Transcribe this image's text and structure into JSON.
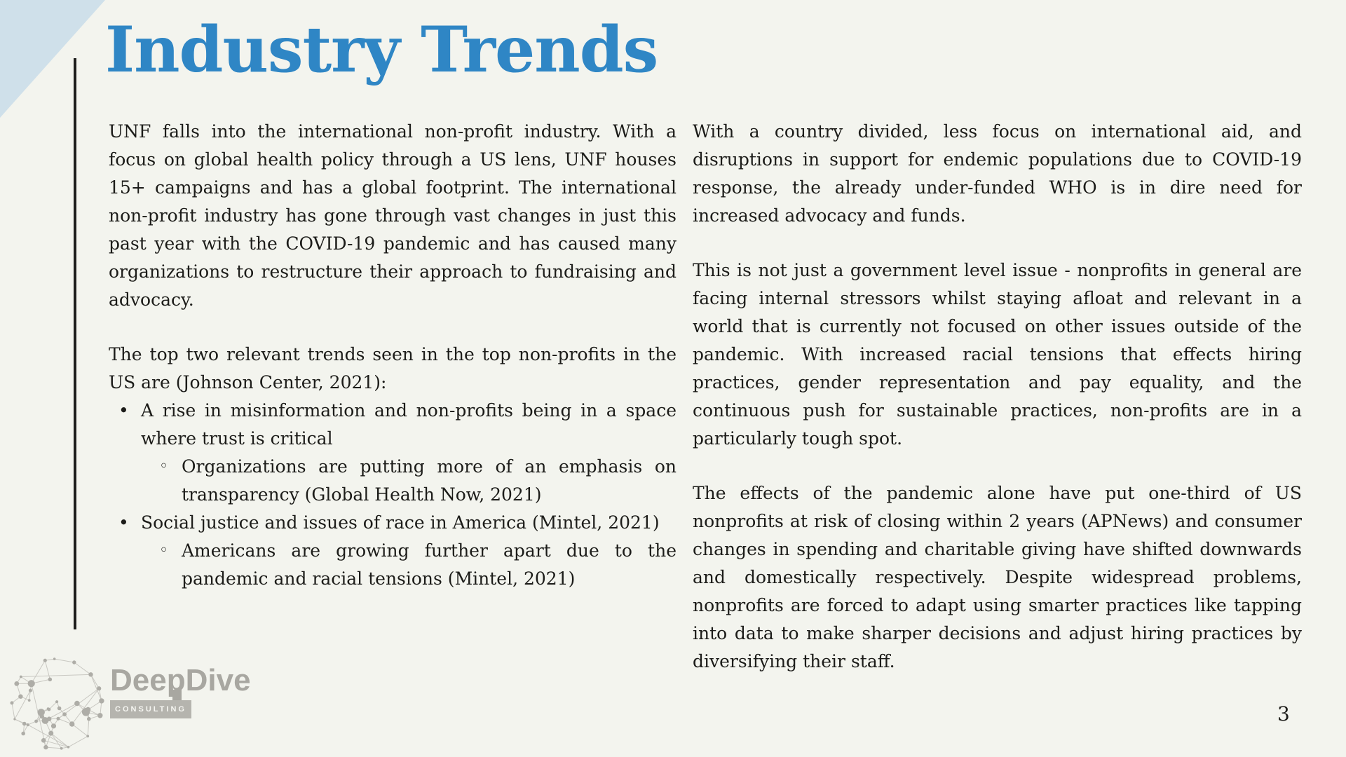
{
  "page": {
    "page_number": "3"
  },
  "colors": {
    "background": "#f3f4ee",
    "corner_triangle": "#cfe0ea",
    "title_blue": "#2f86c5",
    "body_text": "#1c1c19",
    "accent_line": "#1d1d1b",
    "logo_gray": "#a8a7a1",
    "logo_box_gray": "#b5b4ae",
    "logo_dot_gray": "#aeada7",
    "logo_line_gray": "#c9c8c2"
  },
  "title": {
    "text": "Industry Trends"
  },
  "markers": {
    "level1": "•",
    "level2": "◦"
  },
  "left_column": {
    "paragraphs": [
      "UNF falls into the international non-profit industry. With a focus on global health policy through a US lens, UNF houses 15+ campaigns and has a global footprint. The international non-profit industry has gone through vast changes in just this past year with the COVID-19 pandemic and has caused many organizations to restructure their approach to fundraising and advocacy.",
      "The top two relevant trends seen in the top non-profits in the US are (Johnson Center, 2021):"
    ],
    "bullets": [
      {
        "level": 1,
        "text": "A rise in misinformation and non-profits being in a space where trust is critical"
      },
      {
        "level": 2,
        "text": "Organizations are putting more of an emphasis on transparency (Global Health Now, 2021)"
      },
      {
        "level": 1,
        "text": "Social justice and issues of race in America (Mintel, 2021)"
      },
      {
        "level": 2,
        "text": "Americans are growing further apart due to the pandemic and racial tensions (Mintel, 2021)"
      }
    ]
  },
  "right_column": {
    "paragraphs": [
      "With a country divided, less focus on international aid, and disruptions in support for endemic populations due to COVID-19 response, the already under-funded WHO is in dire need for increased advocacy and funds.",
      "This is not just a government level issue - nonprofits in general are facing internal stressors whilst staying afloat and relevant in a world that is currently not focused on other issues outside of the pandemic. With increased racial tensions that effects hiring practices, gender representation and pay equality, and the continuous push for sustainable practices, non-profits are in a particularly tough spot.",
      "The effects of the pandemic alone have put one-third of US nonprofits at risk of closing within 2 years (APNews) and consumer changes in spending and charitable giving have shifted downwards and domestically respectively. Despite widespread problems, nonprofits are forced to adapt using smarter practices like tapping into data to make sharper decisions and adjust hiring practices by diversifying their staff."
    ]
  },
  "logo": {
    "brand": "DeepDive",
    "tagline": "CONSULTING"
  }
}
